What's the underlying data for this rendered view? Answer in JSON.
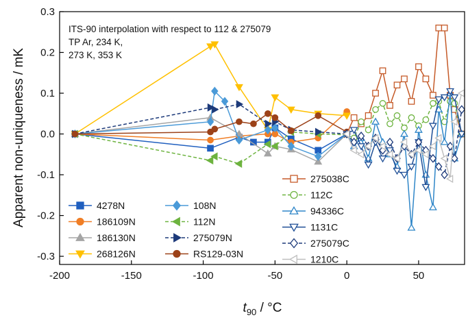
{
  "chart_data": {
    "type": "line",
    "title": "",
    "xlabel_var": "t",
    "xlabel_sub": "90",
    "xlabel_unit": " / °C",
    "ylabel": "Apparent non-uniqueness / mK",
    "xlim": [
      -200,
      82
    ],
    "ylim": [
      -0.32,
      0.3
    ],
    "x_ticks": [
      -200,
      -150,
      -100,
      -50,
      0,
      50
    ],
    "y_ticks": [
      -0.3,
      -0.2,
      -0.1,
      0.0,
      0.1,
      0.2,
      0.3
    ],
    "x_tick_labels": [
      "-200",
      "-150",
      "-100",
      "-50",
      "0",
      "50"
    ],
    "y_tick_labels": [
      "-0.3",
      "-0.2",
      "-0.1",
      "0.0",
      "0.1",
      "0.2",
      "0.3"
    ],
    "annotation": [
      "ITS-90 interpolation with respect to 112 & 275079",
      "TP Ar,  234 K,",
      "273 K, 353 K"
    ],
    "series": [
      {
        "name": "4278N",
        "color": "#1f5fbf",
        "marker": "square",
        "filled": true,
        "dash": false,
        "x": [
          -189.3,
          -95,
          -75,
          -65,
          -55,
          -50,
          -38.8,
          -20,
          0
        ],
        "y": [
          0,
          -0.035,
          -0.008,
          -0.02,
          -0.02,
          0.015,
          -0.012,
          -0.04,
          0
        ]
      },
      {
        "name": "186109N",
        "color": "#f07e26",
        "marker": "circle",
        "filled": true,
        "dash": false,
        "x": [
          -189.3,
          -95,
          -75,
          -55,
          -50,
          -38.8,
          -20,
          0
        ],
        "y": [
          0,
          -0.015,
          -0.005,
          0.0,
          0.0,
          -0.02,
          -0.01,
          0.055
        ]
      },
      {
        "name": "186130N",
        "color": "#a5a5a5",
        "marker": "triangle-up",
        "filled": true,
        "dash": false,
        "x": [
          -189.3,
          -95,
          -75,
          -55,
          -50,
          -38.8,
          -20,
          0
        ],
        "y": [
          0,
          0.04,
          0.0,
          -0.048,
          -0.03,
          -0.038,
          -0.068,
          0.0
        ]
      },
      {
        "name": "268126N",
        "color": "#ffc000",
        "marker": "triangle-down",
        "filled": true,
        "dash": false,
        "x": [
          -189.3,
          -95,
          -92,
          -75,
          -55,
          -50,
          -38.8,
          -20,
          0
        ],
        "y": [
          0,
          0.215,
          0.22,
          0.115,
          0.01,
          0.09,
          0.06,
          0.05,
          0.045
        ]
      },
      {
        "name": "108N",
        "color": "#4a9ad8",
        "marker": "diamond",
        "filled": true,
        "dash": false,
        "x": [
          -189.3,
          -95,
          -92,
          -85,
          -75,
          -55,
          -50,
          -38.8,
          -20,
          0
        ],
        "y": [
          0,
          0.03,
          0.105,
          0.08,
          -0.015,
          0.01,
          0.015,
          -0.03,
          -0.055,
          0.0
        ]
      },
      {
        "name": "112N",
        "color": "#6db33f",
        "marker": "triangle-left",
        "filled": true,
        "dash": true,
        "x": [
          -189.3,
          -95,
          -92,
          -75,
          -55,
          -50,
          -38.8,
          -20,
          0
        ],
        "y": [
          0,
          -0.065,
          -0.055,
          -0.073,
          -0.025,
          -0.03,
          0.005,
          0.0,
          -0.002
        ]
      },
      {
        "name": "275079N",
        "color": "#1d3a7a",
        "marker": "triangle-right",
        "filled": true,
        "dash": true,
        "x": [
          -189.3,
          -95,
          -92,
          -75,
          -55,
          -50,
          -38.8,
          -20,
          0
        ],
        "y": [
          0,
          0.065,
          0.06,
          0.073,
          0.025,
          0.03,
          0.01,
          0.005,
          0.0
        ]
      },
      {
        "name": "RS129-03N",
        "color": "#9c4219",
        "marker": "circle",
        "filled": true,
        "dash": false,
        "x": [
          -189.3,
          -95,
          -92,
          -75,
          -65,
          -55,
          -50,
          -38.8,
          -20,
          0
        ],
        "y": [
          0,
          0.005,
          0.012,
          0.03,
          0.025,
          0.05,
          0.04,
          0.008,
          0.045,
          0.005
        ]
      },
      {
        "name": "275038C",
        "color": "#c55a28",
        "marker": "square",
        "filled": false,
        "dash": false,
        "x": [
          0,
          5,
          10,
          15,
          20,
          25,
          30,
          35,
          40,
          45,
          50,
          55,
          60,
          64,
          68,
          72,
          75,
          80
        ],
        "y": [
          0,
          0.04,
          0.025,
          0.045,
          0.1,
          0.155,
          0.07,
          0.12,
          0.135,
          0.08,
          0.165,
          0.135,
          0.095,
          0.26,
          0.26,
          0.095,
          0.06,
          0.0
        ]
      },
      {
        "name": "112C",
        "color": "#6db33f",
        "marker": "circle",
        "filled": false,
        "dash": true,
        "x": [
          0,
          5,
          10,
          15,
          20,
          25,
          30,
          35,
          40,
          45,
          50,
          55,
          60,
          64,
          68,
          72,
          75,
          80
        ],
        "y": [
          0,
          -0.01,
          0.03,
          0.01,
          0.06,
          0.075,
          0.025,
          0.045,
          0.015,
          0.04,
          0.02,
          0.035,
          0.075,
          0.08,
          0.03,
          0.08,
          0.075,
          0.0
        ]
      },
      {
        "name": "94336C",
        "color": "#2f86c8",
        "marker": "triangle-up",
        "filled": false,
        "dash": false,
        "x": [
          0,
          5,
          10,
          15,
          20,
          25,
          30,
          35,
          40,
          45,
          50,
          55,
          60,
          64,
          68,
          72,
          75,
          80
        ],
        "y": [
          0,
          -0.03,
          -0.01,
          -0.06,
          0.03,
          -0.02,
          -0.05,
          -0.08,
          0.0,
          -0.23,
          0.01,
          -0.1,
          -0.18,
          0.06,
          -0.02,
          0.1,
          -0.06,
          0.0
        ]
      },
      {
        "name": "1131C",
        "color": "#1f4f96",
        "marker": "triangle-down",
        "filled": false,
        "dash": false,
        "x": [
          0,
          5,
          10,
          15,
          20,
          25,
          30,
          35,
          40,
          45,
          50,
          55,
          60,
          64,
          68,
          72,
          75,
          80
        ],
        "y": [
          0,
          0.01,
          -0.03,
          -0.075,
          -0.02,
          -0.06,
          -0.04,
          -0.09,
          -0.1,
          -0.08,
          -0.02,
          -0.13,
          0.02,
          0.085,
          0.09,
          0.105,
          0.09,
          0.0
        ]
      },
      {
        "name": "275079C",
        "color": "#1d3a7a",
        "marker": "diamond",
        "filled": false,
        "dash": true,
        "x": [
          0,
          5,
          10,
          15,
          20,
          25,
          30,
          35,
          40,
          45,
          50,
          55,
          60,
          64,
          68,
          72,
          75,
          80
        ],
        "y": [
          0,
          -0.02,
          -0.005,
          -0.03,
          -0.01,
          -0.04,
          -0.02,
          -0.06,
          -0.03,
          -0.05,
          -0.02,
          -0.04,
          -0.06,
          -0.08,
          -0.1,
          -0.03,
          -0.06,
          0.06
        ]
      },
      {
        "name": "1210C",
        "color": "#bfbfbf",
        "marker": "triangle-left",
        "filled": false,
        "dash": false,
        "x": [
          0,
          5,
          10,
          15,
          20,
          25,
          30,
          35,
          40,
          45,
          50,
          55,
          60,
          64,
          68,
          72,
          75,
          80
        ],
        "y": [
          0,
          -0.04,
          -0.05,
          -0.03,
          -0.01,
          -0.03,
          -0.05,
          -0.06,
          -0.02,
          -0.05,
          -0.04,
          -0.05,
          -0.03,
          -0.01,
          -0.06,
          -0.11,
          0.03,
          0.1
        ]
      }
    ]
  }
}
